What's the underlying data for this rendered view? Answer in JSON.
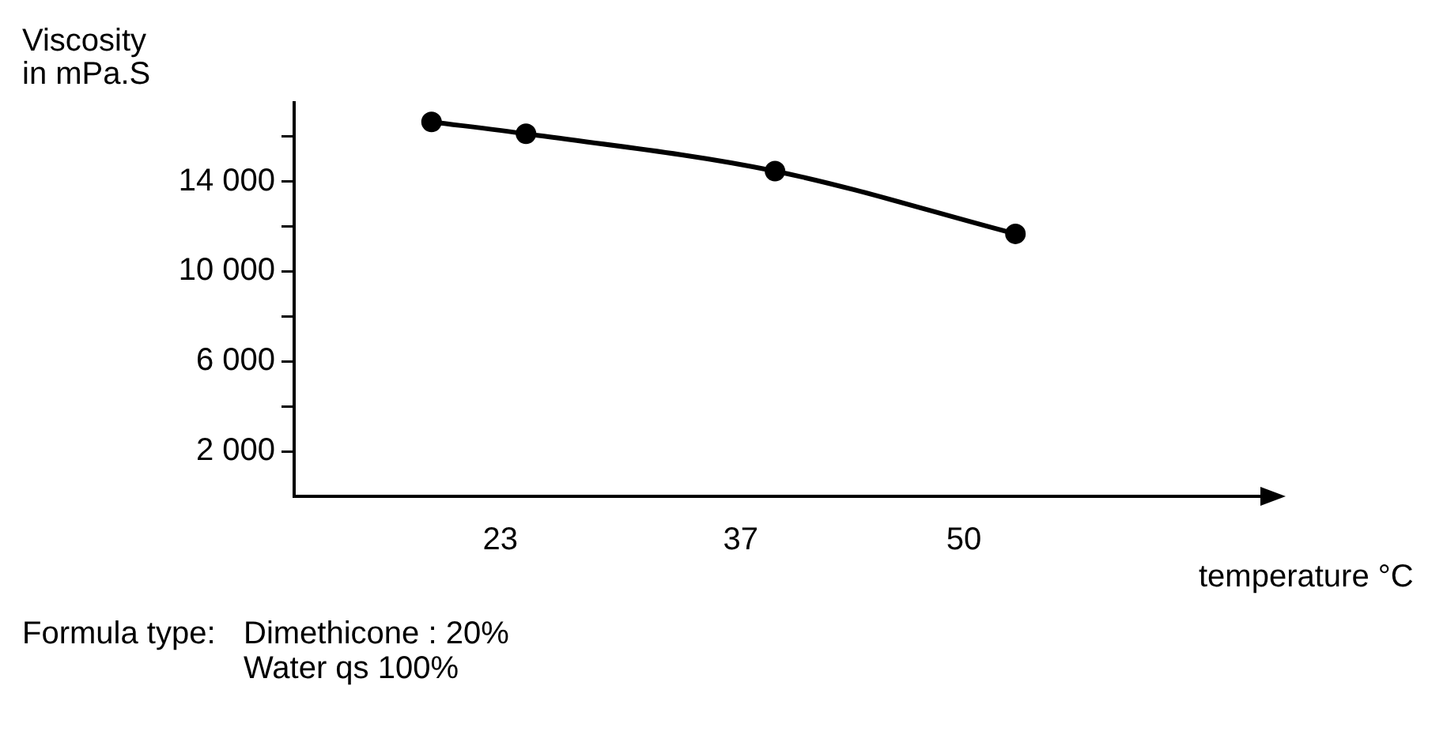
{
  "chart_data": {
    "type": "line",
    "ylabel": "Viscosity\nin mPa.S",
    "xlabel": "temperature °C",
    "x": [
      19,
      24.5,
      39,
      53
    ],
    "series": [
      {
        "color": "#000000",
        "values": [
          16650,
          16120,
          14460,
          11670
        ]
      }
    ],
    "xlim": [
      11,
      68
    ],
    "xticks": [
      23,
      37,
      50
    ],
    "ylim": [
      0,
      17500
    ],
    "yticks": [
      {
        "value": 2000,
        "label": "2 000"
      },
      {
        "value": 4000,
        "label": null
      },
      {
        "value": 6000,
        "label": "6 000"
      },
      {
        "value": 8000,
        "label": null
      },
      {
        "value": 10000,
        "label": "10 000"
      },
      {
        "value": 12000,
        "label": null
      },
      {
        "value": 14000,
        "label": "14 000"
      },
      {
        "value": 16000,
        "label": null
      }
    ],
    "grid": false,
    "legend": false,
    "marker": "circle",
    "line_style": "solid",
    "annotations": [
      "Formula type:",
      "Dimethicone : 20%",
      "Water qs 100%"
    ]
  }
}
